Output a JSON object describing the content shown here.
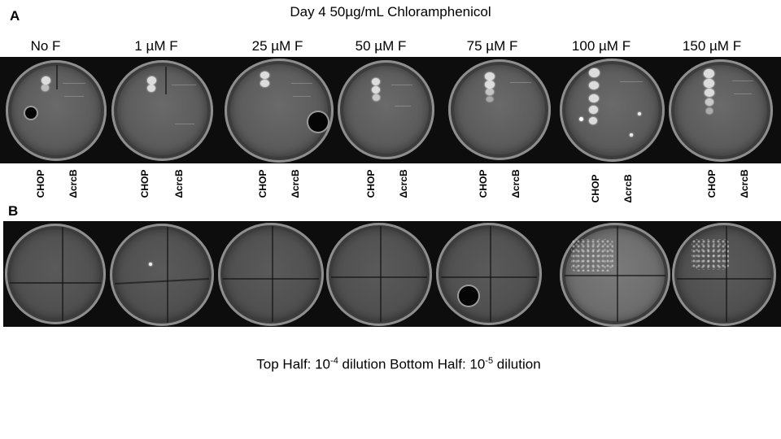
{
  "panel_a": {
    "letter": "A"
  },
  "panel_b": {
    "letter": "B"
  },
  "title": "Day 4 50µg/mL Chloramphenicol",
  "columns": [
    "No F",
    "1 µM F",
    "25 µM F",
    "50 µM F",
    "75 µM F",
    "100 µM F",
    "150 µM F"
  ],
  "strain_labels": {
    "left": "CHOP",
    "right": "ΔcrcB"
  },
  "caption": {
    "top_prefix": "Top Half: 10",
    "top_exp": "-4",
    "middle": " dilution Bottom Half: 10",
    "bottom_exp": "-5",
    "suffix": " dilution"
  }
}
